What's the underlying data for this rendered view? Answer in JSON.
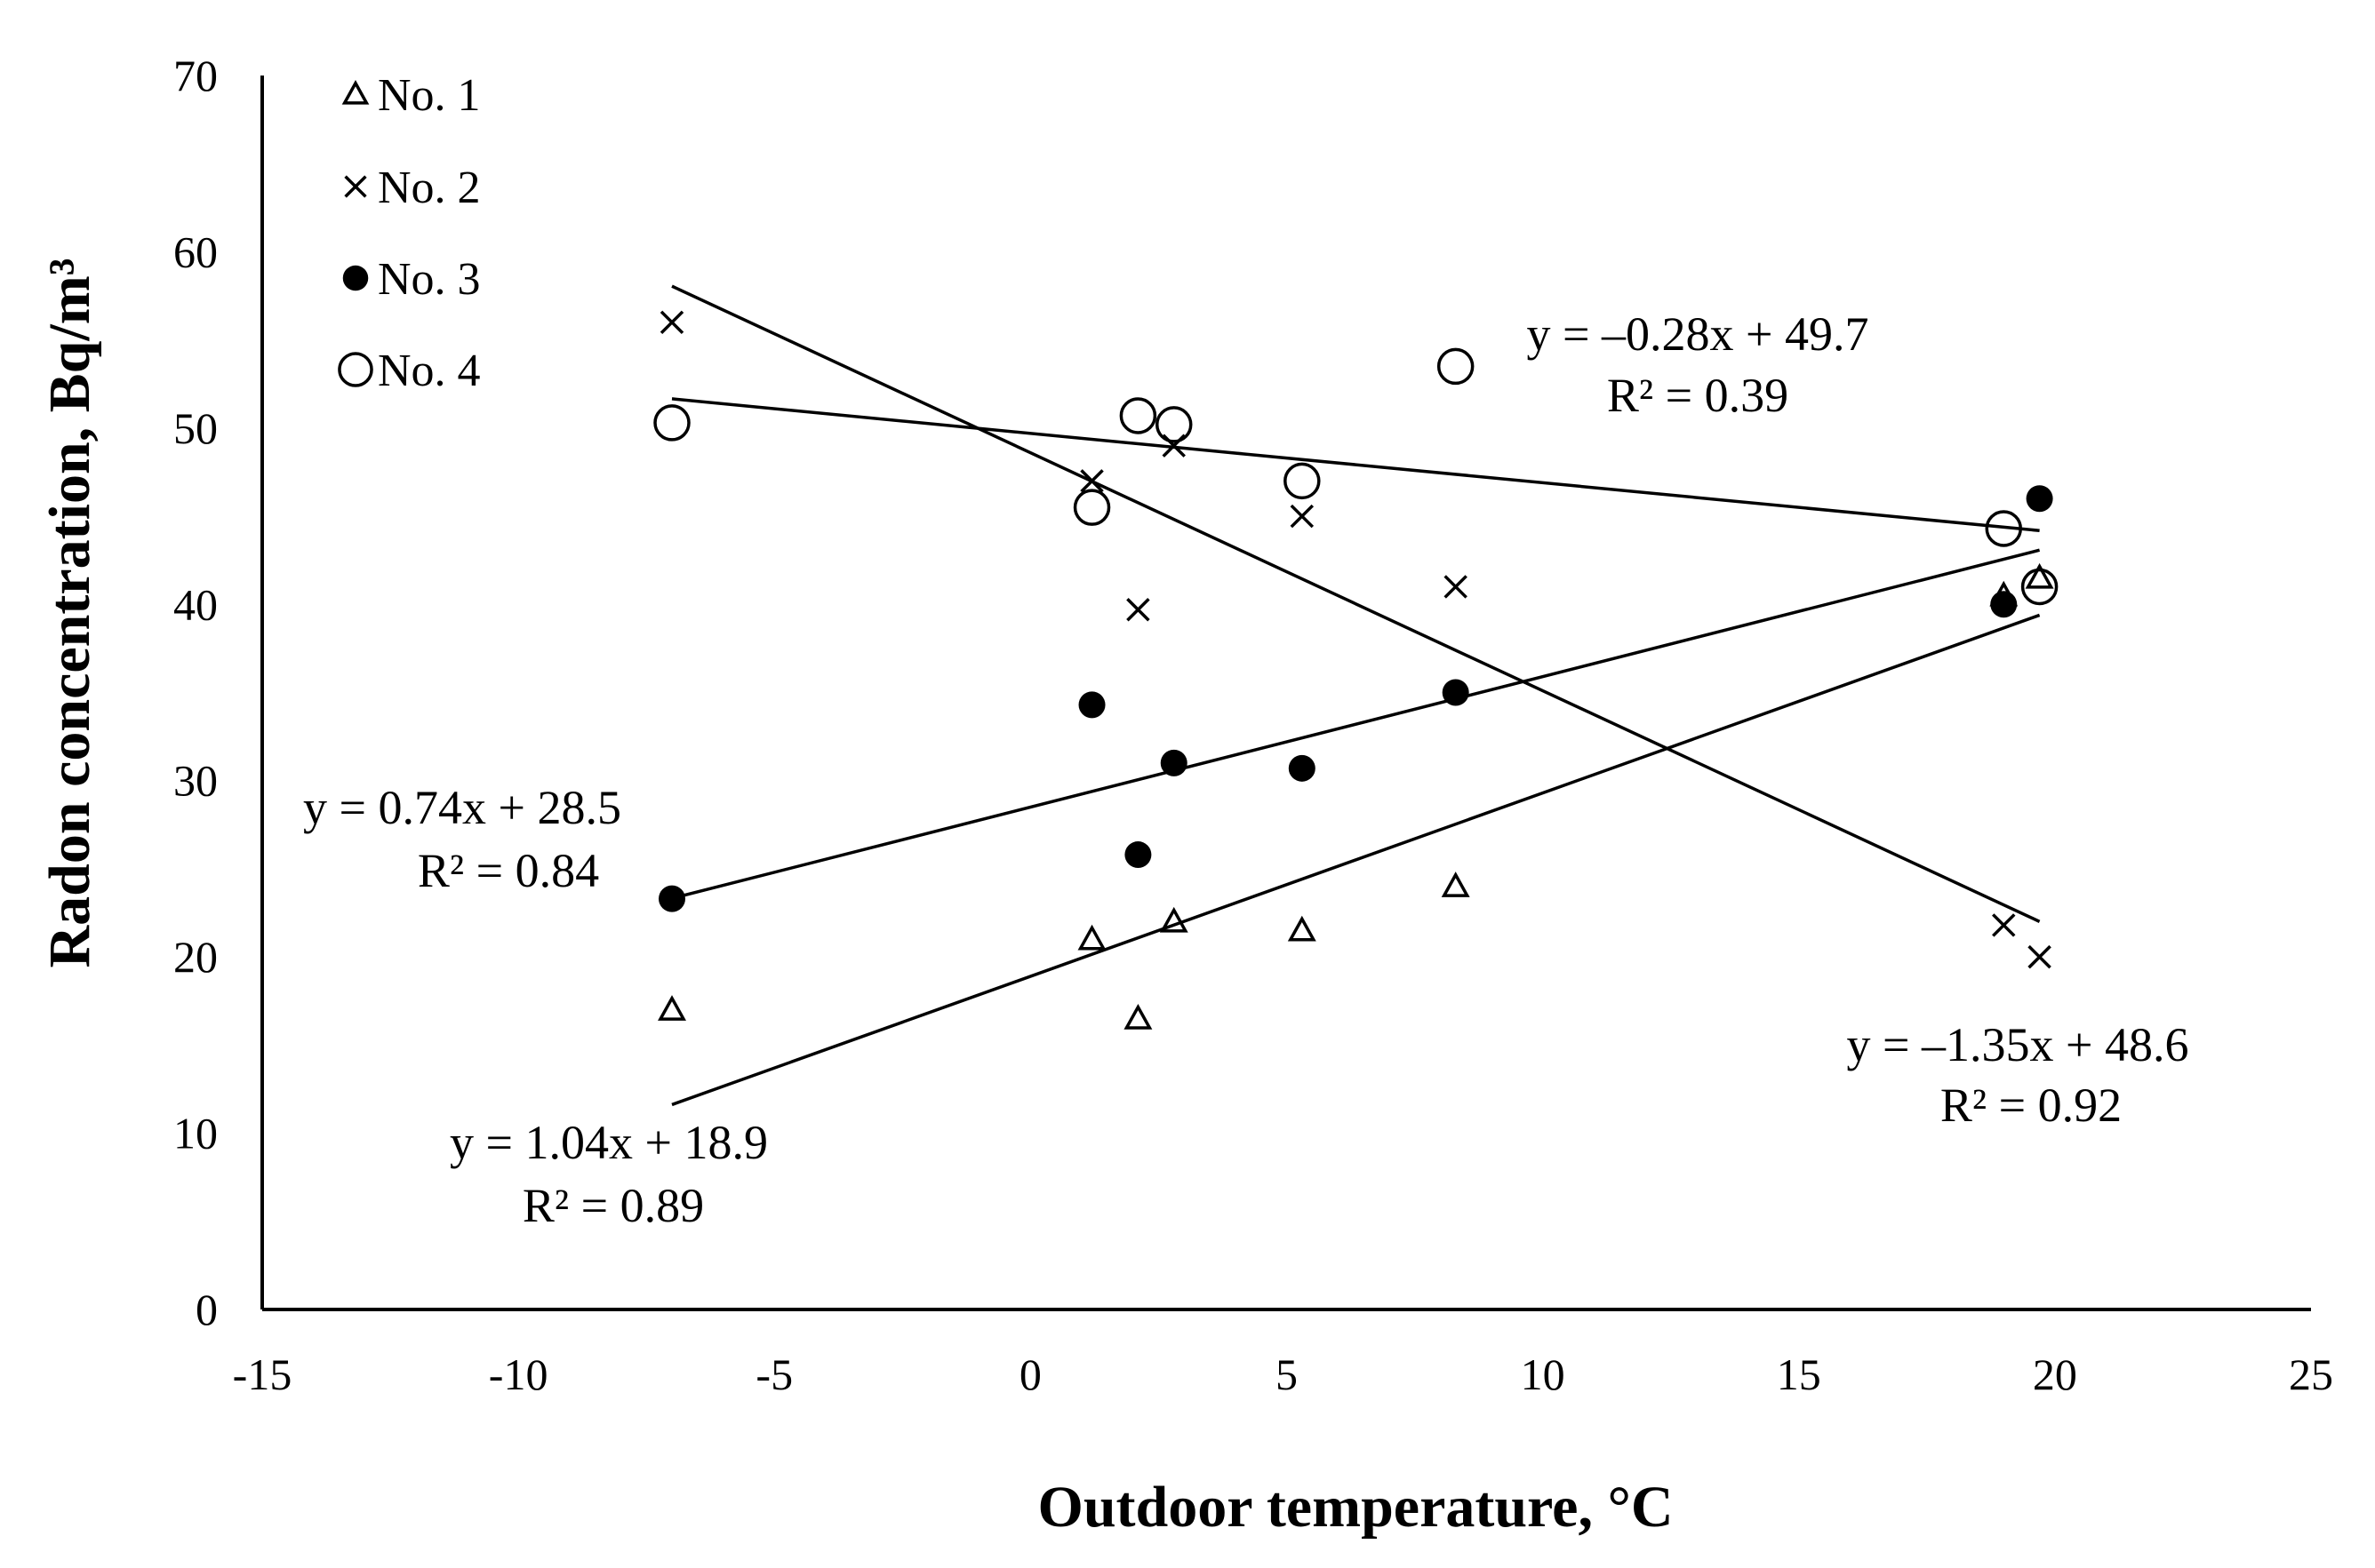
{
  "chart_data": {
    "type": "scatter",
    "xlabel": "Outdoor temperature, °C",
    "ylabel": "Radon  concentration,  Bq/m³",
    "xlim": [
      -15,
      25
    ],
    "ylim": [
      0,
      70
    ],
    "xticks": [
      -15,
      -10,
      -5,
      0,
      5,
      10,
      15,
      20,
      25
    ],
    "yticks": [
      0,
      10,
      20,
      30,
      40,
      50,
      60,
      70
    ],
    "grid": false,
    "legend_position": "top-left",
    "series": [
      {
        "name": "No. 1",
        "marker": "triangle",
        "x": [
          -7,
          1.2,
          2.1,
          2.8,
          5.3,
          8.3,
          19,
          19.7
        ],
        "y": [
          17,
          21,
          16.5,
          22,
          21.5,
          24,
          40.5,
          41.5
        ],
        "trend": {
          "slope": 1.04,
          "intercept": 18.9,
          "x_range": [
            -7,
            19.7
          ]
        },
        "equation": "y = 1.04x + 18.9",
        "r2": "R² = 0.89"
      },
      {
        "name": "No. 2",
        "marker": "cross",
        "x": [
          -7,
          1.2,
          2.1,
          2.8,
          5.3,
          8.3,
          19,
          19.7
        ],
        "y": [
          56,
          47,
          39.7,
          49,
          45,
          41,
          21.8,
          20
        ],
        "trend": {
          "slope": -1.35,
          "intercept": 48.6,
          "x_range": [
            -7,
            19.7
          ]
        },
        "equation": "y = –1.35x + 48.6",
        "r2": "R² = 0.92"
      },
      {
        "name": "No. 3",
        "marker": "filled-circle",
        "x": [
          -7,
          1.2,
          2.1,
          2.8,
          5.3,
          8.3,
          19,
          19.7
        ],
        "y": [
          23.3,
          34.3,
          25.8,
          31,
          30.7,
          35,
          40,
          46
        ],
        "trend": {
          "slope": 0.74,
          "intercept": 28.5,
          "x_range": [
            -7,
            19.7
          ]
        },
        "equation": "y = 0.74x + 28.5",
        "r2": "R² = 0.84"
      },
      {
        "name": "No. 4",
        "marker": "open-circle",
        "x": [
          -7,
          1.2,
          2.1,
          2.8,
          5.3,
          8.3,
          19,
          19.7
        ],
        "y": [
          50.3,
          45.5,
          50.7,
          50.2,
          47,
          53.5,
          44.3,
          41
        ],
        "trend": {
          "slope": -0.28,
          "intercept": 49.7,
          "x_range": [
            -7,
            19.7
          ]
        },
        "equation": "y = –0.28x + 49.7",
        "r2": "R² = 0.39"
      }
    ]
  }
}
